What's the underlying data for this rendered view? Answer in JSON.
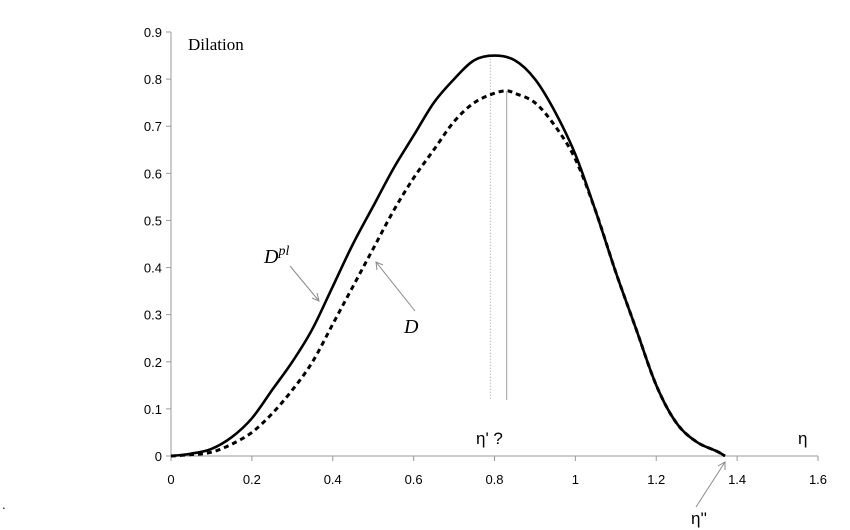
{
  "chart_data": {
    "type": "line",
    "title": "Dilation",
    "xlabel": "η",
    "ylabel": "",
    "xlim": [
      0,
      1.6
    ],
    "ylim": [
      0,
      0.9
    ],
    "xticks": [
      "0",
      "0.2",
      "0.4",
      "0.6",
      "0.8",
      "1",
      "1.2",
      "1.4",
      "1.6"
    ],
    "yticks": [
      "0",
      "0.1",
      "0.2",
      "0.3",
      "0.4",
      "0.5",
      "0.6",
      "0.7",
      "0.8",
      "0.9"
    ],
    "grid": false,
    "legend": "none (inline annotations)",
    "series": [
      {
        "name": "D^pl",
        "style": "solid",
        "x": [
          0,
          0.05,
          0.1,
          0.15,
          0.2,
          0.25,
          0.3,
          0.35,
          0.4,
          0.45,
          0.5,
          0.55,
          0.6,
          0.65,
          0.7,
          0.75,
          0.8,
          0.85,
          0.9,
          0.95,
          1.0,
          1.05,
          1.1,
          1.15,
          1.2,
          1.25,
          1.3,
          1.35,
          1.37
        ],
        "y": [
          0,
          0.005,
          0.015,
          0.04,
          0.08,
          0.14,
          0.2,
          0.27,
          0.36,
          0.45,
          0.53,
          0.61,
          0.68,
          0.75,
          0.8,
          0.84,
          0.85,
          0.84,
          0.8,
          0.73,
          0.64,
          0.52,
          0.39,
          0.27,
          0.15,
          0.07,
          0.03,
          0.01,
          0.0
        ]
      },
      {
        "name": "D",
        "style": "dotted",
        "x": [
          0,
          0.05,
          0.1,
          0.15,
          0.2,
          0.25,
          0.3,
          0.35,
          0.4,
          0.45,
          0.5,
          0.55,
          0.6,
          0.65,
          0.7,
          0.75,
          0.8,
          0.83,
          0.85,
          0.9,
          0.95,
          1.0,
          1.05,
          1.1,
          1.15,
          1.2,
          1.25,
          1.3,
          1.35,
          1.37
        ],
        "y": [
          0,
          0.003,
          0.008,
          0.025,
          0.05,
          0.09,
          0.14,
          0.2,
          0.28,
          0.36,
          0.44,
          0.52,
          0.59,
          0.65,
          0.71,
          0.75,
          0.77,
          0.775,
          0.77,
          0.75,
          0.7,
          0.63,
          0.52,
          0.39,
          0.27,
          0.15,
          0.07,
          0.03,
          0.01,
          0.0
        ]
      }
    ],
    "annotations": [
      {
        "text": "Dilation",
        "position": "top-left"
      },
      {
        "text": "D^pl",
        "arrow_to": [
          0.37,
          0.33
        ]
      },
      {
        "text": "D",
        "arrow_to": [
          0.5,
          0.42
        ]
      },
      {
        "text": "η' ?",
        "at_x": 0.8
      },
      {
        "text": "η''",
        "arrow_to": [
          1.37,
          0.0
        ]
      },
      {
        "text": "η",
        "at_x": 1.57
      }
    ],
    "vertical_markers": [
      {
        "x": 0.79,
        "style": "dotted",
        "label": "η'"
      },
      {
        "x": 0.83,
        "style": "solid"
      }
    ]
  },
  "labels": {
    "title": "Dilation",
    "dpl_main": "D",
    "dpl_sup": "pl",
    "d_label": "D",
    "eta_prime": "η' ?",
    "eta_double_prime": "η''",
    "eta_axis": "η",
    "stray_mark": "."
  }
}
